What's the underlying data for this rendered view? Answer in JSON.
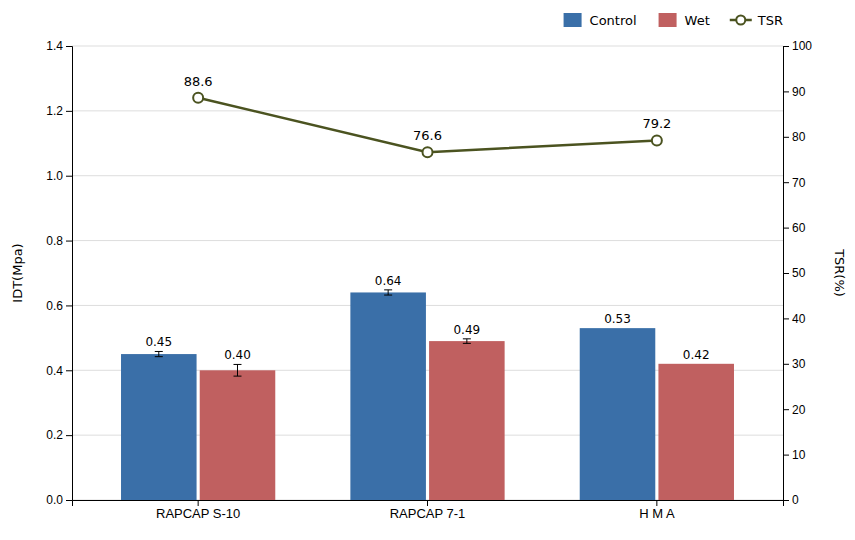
{
  "chart_data": {
    "type": "bar",
    "categories": [
      "RAPCAP S-10",
      "RAPCAP 7-1",
      "H M A"
    ],
    "series": [
      {
        "name": "Control",
        "color": "#3A6FA8",
        "values": [
          0.45,
          0.64,
          0.53
        ],
        "value_labels": [
          "0.45",
          "0.64",
          "0.53"
        ],
        "errors": [
          0.008,
          0.008,
          0.0
        ]
      },
      {
        "name": "Wet",
        "color": "#C06060",
        "values": [
          0.4,
          0.49,
          0.42
        ],
        "value_labels": [
          "0.40",
          "0.49",
          "0.42"
        ],
        "errors": [
          0.018,
          0.007,
          0.0
        ]
      },
      {
        "name": "TSR",
        "type": "line",
        "axis": "y2",
        "color": "#4B5320",
        "marker": "circle",
        "values": [
          88.6,
          76.6,
          79.2
        ]
      }
    ],
    "ylabel": "IDT(Mpa)",
    "y2label": "TSR(%)",
    "ylim": [
      0.0,
      1.4
    ],
    "yticks": [
      {
        "value": 0,
        "label": "0.0"
      },
      0.2,
      0.4,
      0.6,
      0.8,
      {
        "value": 1,
        "label": "1.0"
      },
      1.2,
      1.4
    ],
    "y2lim": [
      0,
      100
    ],
    "y2ticks": [
      0,
      10,
      20,
      30,
      40,
      50,
      60,
      70,
      80,
      90,
      100
    ],
    "grid": true,
    "legend": "upper right",
    "data_labels": true
  }
}
